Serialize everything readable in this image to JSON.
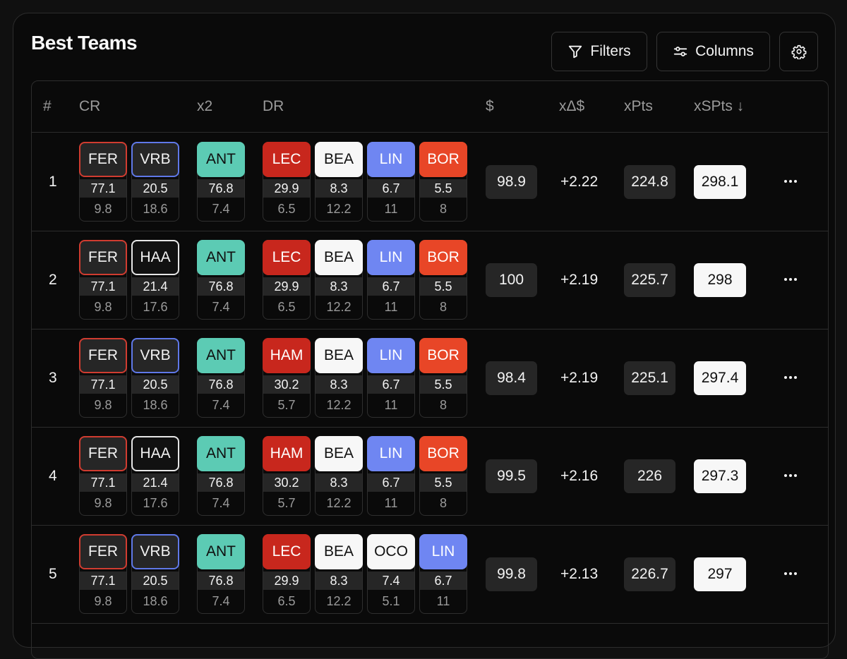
{
  "title": "Best Teams",
  "toolbar": {
    "filters_label": "Filters",
    "columns_label": "Columns"
  },
  "headers": {
    "rank": "#",
    "cr": "CR",
    "x2": "x2",
    "dr": "DR",
    "price": "$",
    "xdelta": "xΔ$",
    "xpts": "xPts",
    "xspts": "xSPts ↓"
  },
  "colors": {
    "teal": "#5ccbb4",
    "red": "#c8271d",
    "white": "#f7f7f7",
    "blue": "#6f86f2",
    "orange": "#e84627",
    "outline_red": "#d03c30",
    "outline_blue": "#5f78e8",
    "outline_white": "#e6e6e6"
  },
  "rows": [
    {
      "rank": "1",
      "cr": [
        {
          "code": "FER",
          "v1": "77.1",
          "v2": "9.8",
          "style": "outline_red"
        },
        {
          "code": "VRB",
          "v1": "20.5",
          "v2": "18.6",
          "style": "outline_blue"
        }
      ],
      "x2": {
        "code": "ANT",
        "v1": "76.8",
        "v2": "7.4",
        "style": "teal"
      },
      "dr": [
        {
          "code": "LEC",
          "v1": "29.9",
          "v2": "6.5",
          "style": "red"
        },
        {
          "code": "BEA",
          "v1": "8.3",
          "v2": "12.2",
          "style": "white"
        },
        {
          "code": "LIN",
          "v1": "6.7",
          "v2": "11",
          "style": "blue"
        },
        {
          "code": "BOR",
          "v1": "5.5",
          "v2": "8",
          "style": "orange"
        }
      ],
      "price": "98.9",
      "xdelta": "+2.22",
      "xpts": "224.8",
      "xspts": "298.1"
    },
    {
      "rank": "2",
      "cr": [
        {
          "code": "FER",
          "v1": "77.1",
          "v2": "9.8",
          "style": "outline_red"
        },
        {
          "code": "HAA",
          "v1": "21.4",
          "v2": "17.6",
          "style": "outline_white"
        }
      ],
      "x2": {
        "code": "ANT",
        "v1": "76.8",
        "v2": "7.4",
        "style": "teal"
      },
      "dr": [
        {
          "code": "LEC",
          "v1": "29.9",
          "v2": "6.5",
          "style": "red"
        },
        {
          "code": "BEA",
          "v1": "8.3",
          "v2": "12.2",
          "style": "white"
        },
        {
          "code": "LIN",
          "v1": "6.7",
          "v2": "11",
          "style": "blue"
        },
        {
          "code": "BOR",
          "v1": "5.5",
          "v2": "8",
          "style": "orange"
        }
      ],
      "price": "100",
      "xdelta": "+2.19",
      "xpts": "225.7",
      "xspts": "298"
    },
    {
      "rank": "3",
      "cr": [
        {
          "code": "FER",
          "v1": "77.1",
          "v2": "9.8",
          "style": "outline_red"
        },
        {
          "code": "VRB",
          "v1": "20.5",
          "v2": "18.6",
          "style": "outline_blue"
        }
      ],
      "x2": {
        "code": "ANT",
        "v1": "76.8",
        "v2": "7.4",
        "style": "teal"
      },
      "dr": [
        {
          "code": "HAM",
          "v1": "30.2",
          "v2": "5.7",
          "style": "red"
        },
        {
          "code": "BEA",
          "v1": "8.3",
          "v2": "12.2",
          "style": "white"
        },
        {
          "code": "LIN",
          "v1": "6.7",
          "v2": "11",
          "style": "blue"
        },
        {
          "code": "BOR",
          "v1": "5.5",
          "v2": "8",
          "style": "orange"
        }
      ],
      "price": "98.4",
      "xdelta": "+2.19",
      "xpts": "225.1",
      "xspts": "297.4"
    },
    {
      "rank": "4",
      "cr": [
        {
          "code": "FER",
          "v1": "77.1",
          "v2": "9.8",
          "style": "outline_red"
        },
        {
          "code": "HAA",
          "v1": "21.4",
          "v2": "17.6",
          "style": "outline_white"
        }
      ],
      "x2": {
        "code": "ANT",
        "v1": "76.8",
        "v2": "7.4",
        "style": "teal"
      },
      "dr": [
        {
          "code": "HAM",
          "v1": "30.2",
          "v2": "5.7",
          "style": "red"
        },
        {
          "code": "BEA",
          "v1": "8.3",
          "v2": "12.2",
          "style": "white"
        },
        {
          "code": "LIN",
          "v1": "6.7",
          "v2": "11",
          "style": "blue"
        },
        {
          "code": "BOR",
          "v1": "5.5",
          "v2": "8",
          "style": "orange"
        }
      ],
      "price": "99.5",
      "xdelta": "+2.16",
      "xpts": "226",
      "xspts": "297.3"
    },
    {
      "rank": "5",
      "cr": [
        {
          "code": "FER",
          "v1": "77.1",
          "v2": "9.8",
          "style": "outline_red"
        },
        {
          "code": "VRB",
          "v1": "20.5",
          "v2": "18.6",
          "style": "outline_blue"
        }
      ],
      "x2": {
        "code": "ANT",
        "v1": "76.8",
        "v2": "7.4",
        "style": "teal"
      },
      "dr": [
        {
          "code": "LEC",
          "v1": "29.9",
          "v2": "6.5",
          "style": "red"
        },
        {
          "code": "BEA",
          "v1": "8.3",
          "v2": "12.2",
          "style": "white"
        },
        {
          "code": "OCO",
          "v1": "7.4",
          "v2": "5.1",
          "style": "white"
        },
        {
          "code": "LIN",
          "v1": "6.7",
          "v2": "11",
          "style": "blue"
        }
      ],
      "price": "99.8",
      "xdelta": "+2.13",
      "xpts": "226.7",
      "xspts": "297"
    }
  ]
}
